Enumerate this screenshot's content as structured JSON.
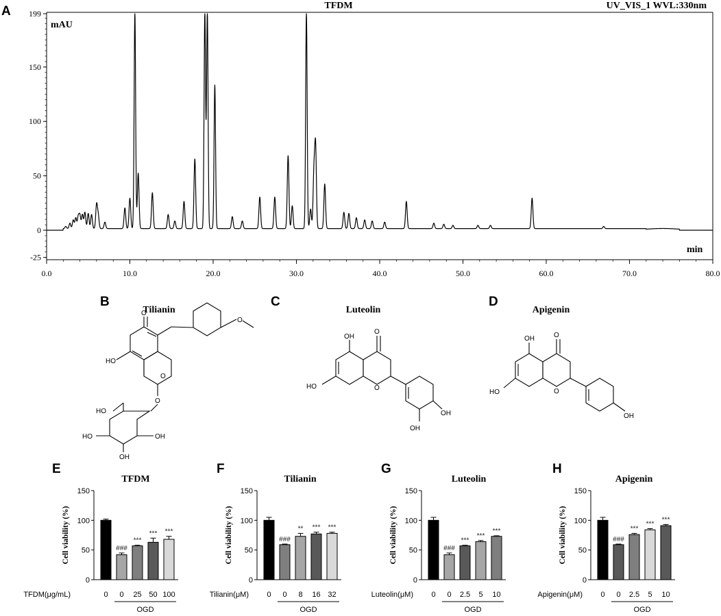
{
  "panels": {
    "A": "A",
    "B": "B",
    "C": "C",
    "D": "D",
    "E": "E",
    "F": "F",
    "G": "G",
    "H": "H"
  },
  "chromatogram": {
    "title": "TFDM",
    "detector": "UV_VIS_1 WVL:330nm",
    "y_unit": "mAU",
    "x_unit": "min"
  },
  "structures": [
    {
      "name": "Tilianin"
    },
    {
      "name": "Luteolin"
    },
    {
      "name": "Apigenin"
    }
  ],
  "atom_labels": {
    "o": "O",
    "oh": "OH",
    "ho": "HO"
  },
  "ogd_label": "OGD",
  "bar_ylabel": "Cell viability (%)",
  "chart_data": [
    {
      "type": "line",
      "title": "TFDM",
      "xlabel": "min",
      "ylabel": "mAU",
      "xlim": [
        0,
        80
      ],
      "ylim": [
        -25,
        199
      ],
      "x_ticks": [
        "0.0",
        "10.0",
        "20.0",
        "30.0",
        "40.0",
        "50.0",
        "60.0",
        "70.0",
        "80.0"
      ],
      "y_ticks": [
        "199",
        "150",
        "100",
        "50",
        "0",
        "-25"
      ],
      "peaks": [
        {
          "x": 2.3,
          "y": 2
        },
        {
          "x": 2.8,
          "y": 5
        },
        {
          "x": 3.2,
          "y": 8
        },
        {
          "x": 3.5,
          "y": 10
        },
        {
          "x": 3.8,
          "y": 11
        },
        {
          "x": 4.0,
          "y": 12
        },
        {
          "x": 4.3,
          "y": 13
        },
        {
          "x": 4.6,
          "y": 15
        },
        {
          "x": 5.0,
          "y": 14
        },
        {
          "x": 5.4,
          "y": 13
        },
        {
          "x": 6.0,
          "y": 22
        },
        {
          "x": 6.2,
          "y": 12
        },
        {
          "x": 7.0,
          "y": 6
        },
        {
          "x": 9.4,
          "y": 19
        },
        {
          "x": 10.0,
          "y": 28
        },
        {
          "x": 10.6,
          "y": 199
        },
        {
          "x": 11.0,
          "y": 51
        },
        {
          "x": 12.7,
          "y": 33
        },
        {
          "x": 14.6,
          "y": 13
        },
        {
          "x": 15.4,
          "y": 7
        },
        {
          "x": 16.5,
          "y": 25
        },
        {
          "x": 17.8,
          "y": 64
        },
        {
          "x": 19.0,
          "y": 199
        },
        {
          "x": 19.3,
          "y": 199
        },
        {
          "x": 20.2,
          "y": 132
        },
        {
          "x": 22.3,
          "y": 11
        },
        {
          "x": 23.5,
          "y": 7
        },
        {
          "x": 25.6,
          "y": 29
        },
        {
          "x": 27.4,
          "y": 29
        },
        {
          "x": 29.0,
          "y": 67
        },
        {
          "x": 29.5,
          "y": 21
        },
        {
          "x": 31.2,
          "y": 199
        },
        {
          "x": 31.7,
          "y": 18
        },
        {
          "x": 32.1,
          "y": 50
        },
        {
          "x": 32.3,
          "y": 75
        },
        {
          "x": 33.4,
          "y": 41
        },
        {
          "x": 35.7,
          "y": 15
        },
        {
          "x": 36.3,
          "y": 14
        },
        {
          "x": 37.2,
          "y": 10
        },
        {
          "x": 38.2,
          "y": 8
        },
        {
          "x": 39.1,
          "y": 7
        },
        {
          "x": 40.6,
          "y": 6
        },
        {
          "x": 43.2,
          "y": 25
        },
        {
          "x": 46.5,
          "y": 5
        },
        {
          "x": 47.7,
          "y": 4
        },
        {
          "x": 48.8,
          "y": 3
        },
        {
          "x": 51.8,
          "y": 3
        },
        {
          "x": 53.3,
          "y": 3
        },
        {
          "x": 58.3,
          "y": 28
        },
        {
          "x": 66.9,
          "y": 2
        }
      ]
    },
    {
      "type": "bar",
      "title": "TFDM",
      "xlabel": "TFDM(μg/mL)",
      "ylabel": "Cell viability (%)",
      "ylim": [
        0,
        150
      ],
      "y_ticks": [
        "0",
        "50",
        "100",
        "150"
      ],
      "categories": [
        "0",
        "0",
        "25",
        "50",
        "100"
      ],
      "values": [
        100,
        42,
        57,
        63,
        68
      ],
      "errors": [
        2,
        3,
        1,
        7,
        5
      ],
      "significance": [
        "",
        "###",
        "***",
        "***",
        "***"
      ],
      "colors": [
        "#000000",
        "#a6a6a6",
        "#7f7f7f",
        "#595959",
        "#d9d9d9"
      ]
    },
    {
      "type": "bar",
      "title": "Tilianin",
      "xlabel": "Tilianin(μM)",
      "ylabel": "Cell viability (%)",
      "ylim": [
        0,
        150
      ],
      "y_ticks": [
        "0",
        "50",
        "100",
        "150"
      ],
      "categories": [
        "0",
        "0",
        "8",
        "16",
        "32"
      ],
      "values": [
        100,
        59,
        73,
        77,
        78
      ],
      "errors": [
        5,
        1,
        5,
        3,
        2
      ],
      "significance": [
        "",
        "###",
        "**",
        "***",
        "***"
      ],
      "colors": [
        "#000000",
        "#7f7f7f",
        "#a6a6a6",
        "#595959",
        "#d9d9d9"
      ]
    },
    {
      "type": "bar",
      "title": "Luteolin",
      "xlabel": "Luteolin(μM)",
      "ylabel": "Cell viability (%)",
      "ylim": [
        0,
        150
      ],
      "y_ticks": [
        "0",
        "50",
        "100",
        "150"
      ],
      "categories": [
        "0",
        "0",
        "2.5",
        "5",
        "10"
      ],
      "values": [
        100,
        42,
        57,
        64,
        73
      ],
      "errors": [
        5,
        3,
        1,
        2,
        1
      ],
      "significance": [
        "",
        "###",
        "***",
        "***",
        "***"
      ],
      "colors": [
        "#000000",
        "#a6a6a6",
        "#595959",
        "#a6a6a6",
        "#7f7f7f"
      ]
    },
    {
      "type": "bar",
      "title": "Apigenin",
      "xlabel": "Apigenin(μM)",
      "ylabel": "Cell viability (%)",
      "ylim": [
        0,
        150
      ],
      "y_ticks": [
        "0",
        "50",
        "100",
        "150"
      ],
      "categories": [
        "0",
        "0",
        "2.5",
        "5",
        "10"
      ],
      "values": [
        100,
        59,
        76,
        84,
        91
      ],
      "errors": [
        5,
        1,
        2,
        2,
        2
      ],
      "significance": [
        "",
        "###",
        "***",
        "***",
        "***"
      ],
      "colors": [
        "#000000",
        "#595959",
        "#7f7f7f",
        "#d9d9d9",
        "#595959"
      ]
    }
  ]
}
